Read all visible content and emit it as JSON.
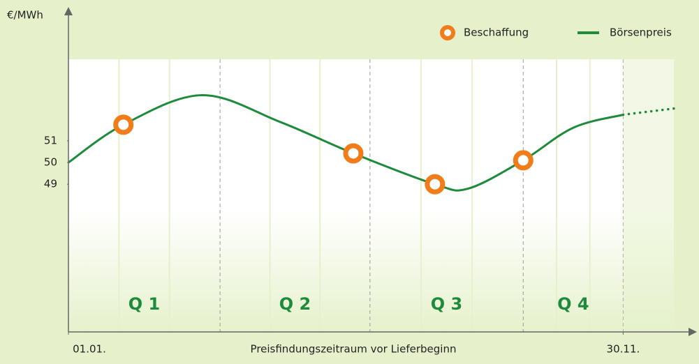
{
  "chart_data": {
    "type": "line",
    "y_axis_label": "€/MWh",
    "x_axis_label": "Preisfindungszeitraum vor Lieferbeginn",
    "xlim": [
      0,
      376
    ],
    "xticks": [
      {
        "value": 0,
        "label": "01.01."
      },
      {
        "value": 333,
        "label": "30.11."
      }
    ],
    "ylim": [
      42.2,
      57
    ],
    "yticks": [
      49,
      50,
      51
    ],
    "quarters": [
      "Q 1",
      "Q 2",
      "Q 3",
      "Q 4"
    ],
    "quarter_edges": [
      91,
      181,
      273,
      333
    ],
    "series": [
      {
        "name": "Börsenpreis",
        "color": "#1e8a3c",
        "x": [
          0,
          33,
          80,
          127,
          171,
          220,
          240,
          273,
          303,
          333
        ],
        "values": [
          50,
          51.74,
          53.1,
          51.87,
          50.42,
          49,
          48.8,
          50.1,
          51.6,
          52.2
        ]
      },
      {
        "name": "Beschaffung",
        "color": "#f07d1a",
        "x": [
          33,
          171,
          220,
          273
        ],
        "values": [
          51.74,
          50.42,
          49,
          50.1
        ]
      }
    ],
    "extension": {
      "color": "#1e8a3c",
      "style": "dotted",
      "x": [
        333,
        365
      ],
      "values": [
        52.2,
        52.5
      ]
    }
  }
}
